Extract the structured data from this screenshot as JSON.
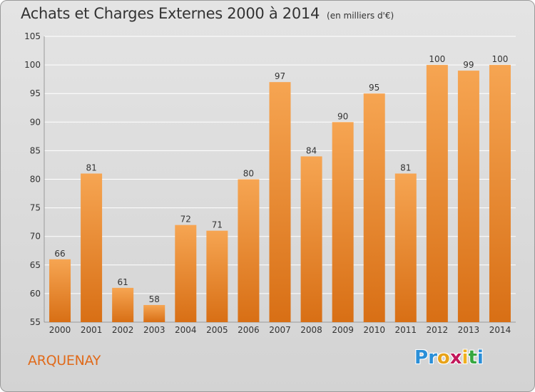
{
  "title": "Achats et Charges Externes 2000 à 2014",
  "unit": "(en milliers d'€)",
  "commune": "ARQUENAY",
  "logo": {
    "letters": [
      "P",
      "r",
      "o",
      "x",
      "i",
      "t",
      "i"
    ],
    "colors": [
      "#2a8fd8",
      "#2a8fd8",
      "#e8a31a",
      "#c2185b",
      "#f0b020",
      "#36a73f",
      "#2a8fd8"
    ]
  },
  "colors": {
    "bar_top": "#f6a552",
    "bar_bottom": "#d86f15",
    "accent": "#e06a1a"
  },
  "chart_data": {
    "type": "bar",
    "categories": [
      "2000",
      "2001",
      "2002",
      "2003",
      "2004",
      "2005",
      "2006",
      "2007",
      "2008",
      "2009",
      "2010",
      "2011",
      "2012",
      "2013",
      "2014"
    ],
    "values": [
      66,
      81,
      61,
      58,
      72,
      71,
      80,
      97,
      84,
      90,
      95,
      81,
      100,
      99,
      100
    ],
    "ylim": [
      55,
      105
    ],
    "yticks": [
      55,
      60,
      65,
      70,
      75,
      80,
      85,
      90,
      95,
      100,
      105
    ],
    "grid": true,
    "legend": "none"
  }
}
